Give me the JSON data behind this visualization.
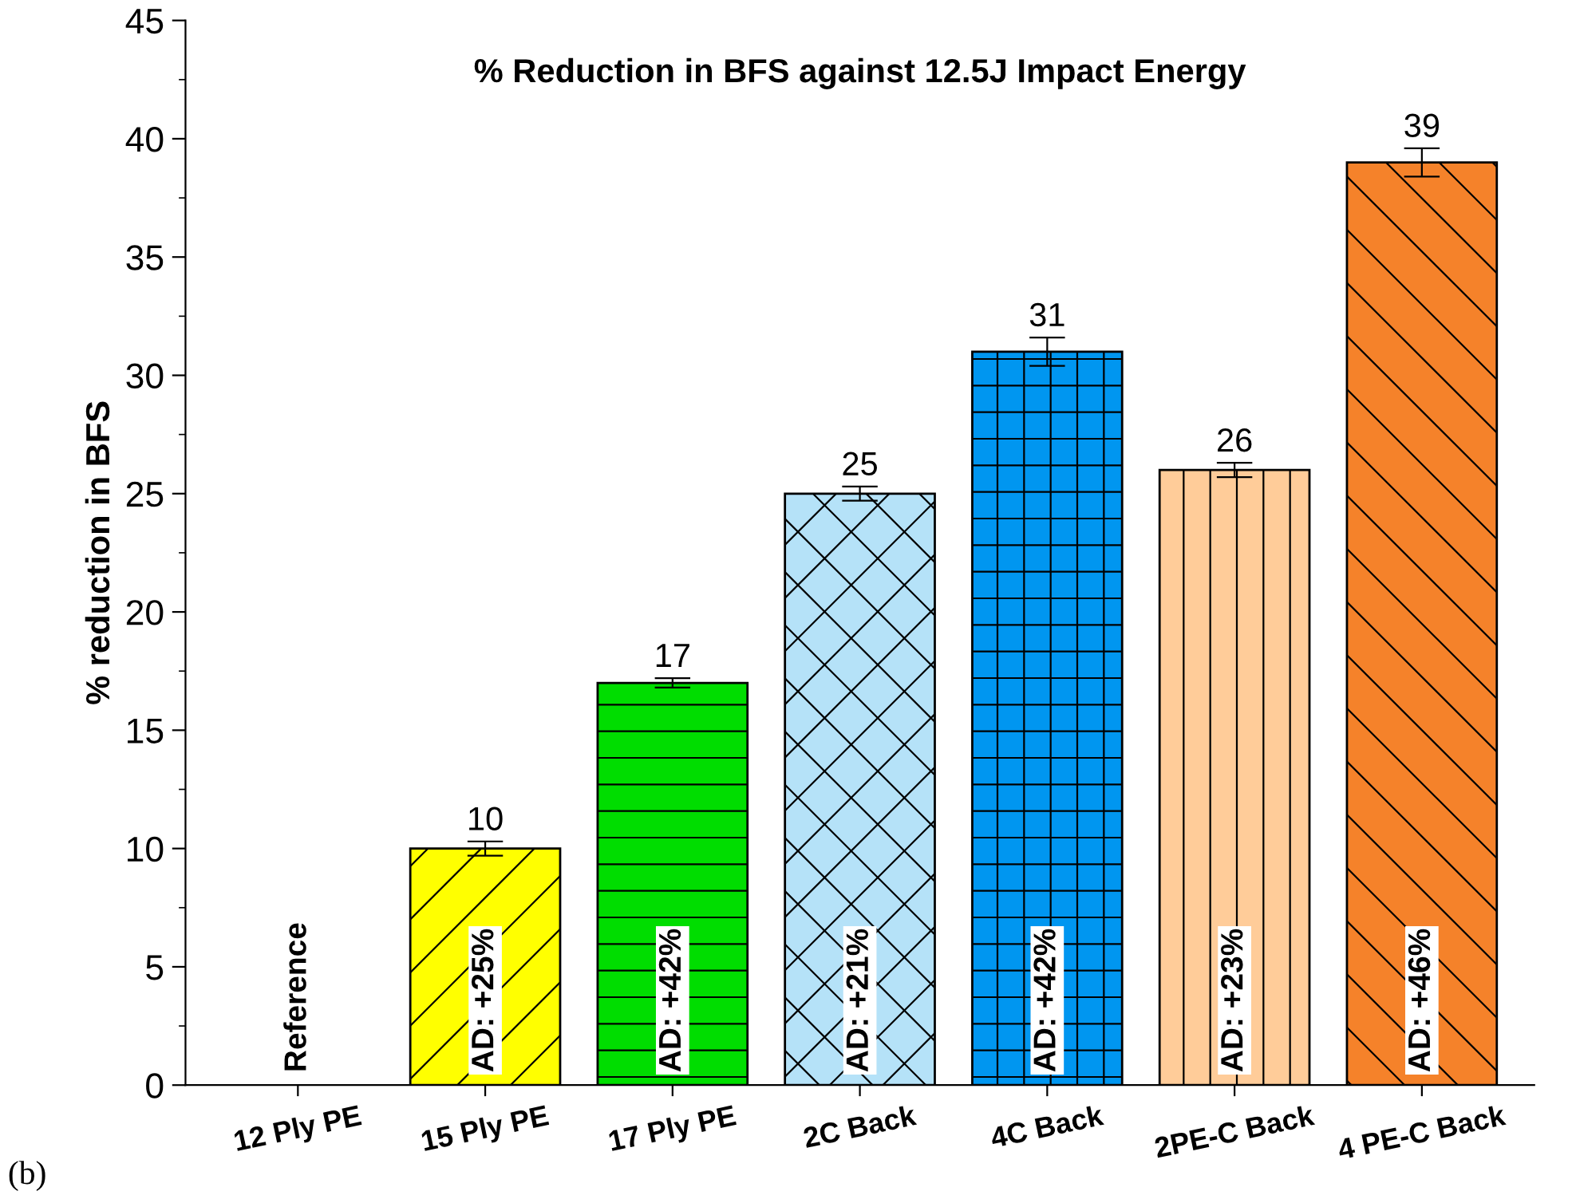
{
  "chart_data": {
    "type": "bar",
    "title": "% Reduction in BFS against 12.5J Impact Energy",
    "ylabel": "% reduction in BFS",
    "categories": [
      "12 Ply PE",
      "15 Ply PE",
      "17 Ply PE",
      "2C Back",
      "4C Back",
      "2PE-C Back",
      "4 PE-C Back"
    ],
    "values": [
      0,
      10,
      17,
      25,
      31,
      26,
      39
    ],
    "colors": [
      "#ffffff",
      "#ffff00",
      "#00dd00",
      "#b5e2f8",
      "#0096f0",
      "#ffcc99",
      "#f5822a"
    ],
    "errors": [
      null,
      0.3,
      0.2,
      0.3,
      0.6,
      0.3,
      0.6
    ],
    "value_labels": [
      null,
      "10",
      "17",
      "25",
      "31",
      "26",
      "39"
    ],
    "ylim": [
      0,
      45
    ],
    "yticks": [
      0,
      5,
      10,
      15,
      20,
      25,
      30,
      35,
      40,
      45
    ],
    "grid": false,
    "legend": false,
    "annotations": [
      "Reference",
      "AD: +25%",
      "AD: +42%",
      "AD: +21%",
      "AD: +42%",
      "AD: +23%",
      "AD: +46%",
      "(b)"
    ]
  }
}
